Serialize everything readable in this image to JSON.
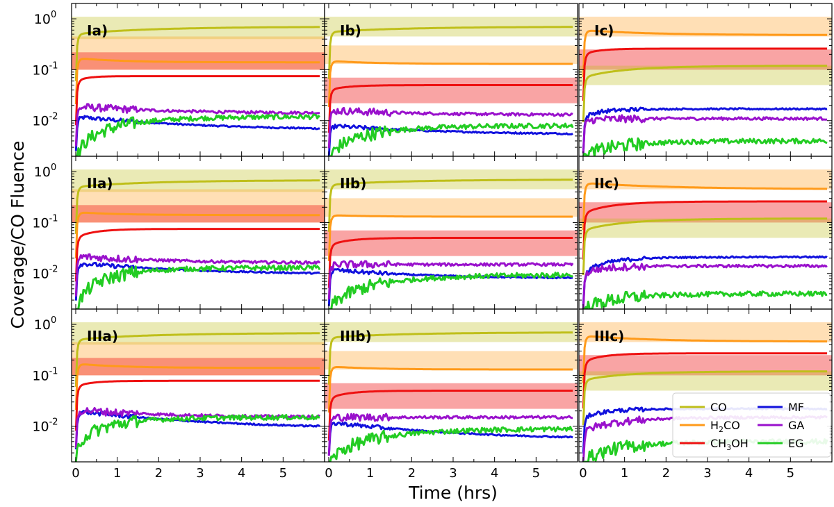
{
  "figure": {
    "ylabel": "Coverage/CO Fluence",
    "xlabel": "Time (hrs)",
    "legend": [
      {
        "name": "CO",
        "label_main": "CO",
        "label_sub": "",
        "label_tail": "",
        "color": "#bfbf1a"
      },
      {
        "name": "H2CO",
        "label_main": "H",
        "label_sub": "2",
        "label_tail": "CO",
        "color": "#ff9a1a"
      },
      {
        "name": "CH3OH",
        "label_main": "CH",
        "label_sub": "3",
        "label_tail": "OH",
        "color": "#ee1111"
      },
      {
        "name": "MF",
        "label_main": "MF",
        "label_sub": "",
        "label_tail": "",
        "color": "#1111dd"
      },
      {
        "name": "GA",
        "label_main": "GA",
        "label_sub": "",
        "label_tail": "",
        "color": "#9911cc"
      },
      {
        "name": "EG",
        "label_main": "EG",
        "label_sub": "",
        "label_tail": "",
        "color": "#22cc22"
      }
    ],
    "legend_position": "bottom-right"
  },
  "chart_data": {
    "type": "line",
    "yscale": "log",
    "xlim": [
      -0.1,
      6.0
    ],
    "ylim": [
      0.002,
      2.0
    ],
    "xticks": [
      "0",
      "1",
      "2",
      "3",
      "4",
      "5"
    ],
    "yticks": [
      {
        "base": "10",
        "exp": "0",
        "value": 1
      },
      {
        "base": "10",
        "exp": "-1",
        "value": 0.1
      },
      {
        "base": "10",
        "exp": "-2",
        "value": 0.01
      }
    ],
    "panels": [
      {
        "label": "Ia)",
        "bands": [
          {
            "species": "CO",
            "range": [
              0.4,
              1.1
            ]
          },
          {
            "species": "H2CO",
            "range": [
              0.1,
              0.45
            ]
          },
          {
            "species": "CH3OH",
            "range": [
              0.1,
              0.22
            ]
          }
        ],
        "series": [
          {
            "species": "CO",
            "start": 0.5,
            "plateau": 0.7,
            "tau": 2.0
          },
          {
            "species": "H2CO",
            "start": 0.17,
            "plateau": 0.14,
            "tau": 1.0
          },
          {
            "species": "CH3OH",
            "start": 0.06,
            "plateau": 0.075,
            "tau": 0.3
          },
          {
            "species": "MF",
            "start": 0.012,
            "plateau": 0.0065,
            "tau": 2.5
          },
          {
            "species": "GA",
            "start": 0.019,
            "plateau": 0.014,
            "tau": 2.0
          },
          {
            "species": "EG",
            "start": 0.002,
            "plateau": 0.012,
            "tau": 1.2
          }
        ]
      },
      {
        "label": "Ib)",
        "bands": [
          {
            "species": "CO",
            "range": [
              0.45,
              1.1
            ]
          },
          {
            "species": "H2CO",
            "range": [
              0.13,
              0.3
            ]
          },
          {
            "species": "CH3OH",
            "range": [
              0.022,
              0.07
            ]
          }
        ],
        "series": [
          {
            "species": "CO",
            "start": 0.55,
            "plateau": 0.7,
            "tau": 2.0
          },
          {
            "species": "H2CO",
            "start": 0.15,
            "plateau": 0.13,
            "tau": 1.0
          },
          {
            "species": "CH3OH",
            "start": 0.04,
            "plateau": 0.05,
            "tau": 0.5
          },
          {
            "species": "MF",
            "start": 0.008,
            "plateau": 0.0053,
            "tau": 2.5
          },
          {
            "species": "GA",
            "start": 0.016,
            "plateau": 0.013,
            "tau": 2.0
          },
          {
            "species": "EG",
            "start": 0.002,
            "plateau": 0.008,
            "tau": 1.2
          }
        ]
      },
      {
        "label": "Ic)",
        "bands": [
          {
            "species": "H2CO",
            "range": [
              0.45,
              1.1
            ]
          },
          {
            "species": "CH3OH",
            "range": [
              0.1,
              0.25
            ]
          },
          {
            "species": "CO",
            "range": [
              0.05,
              0.12
            ]
          }
        ],
        "series": [
          {
            "species": "H2CO",
            "start": 0.6,
            "plateau": 0.48,
            "tau": 1.5
          },
          {
            "species": "CH3OH",
            "start": 0.2,
            "plateau": 0.26,
            "tau": 0.4
          },
          {
            "species": "CO",
            "start": 0.07,
            "plateau": 0.12,
            "tau": 1.2
          },
          {
            "species": "MF",
            "start": 0.012,
            "plateau": 0.017,
            "tau": 0.5
          },
          {
            "species": "GA",
            "start": 0.01,
            "plateau": 0.011,
            "tau": 0.5
          },
          {
            "species": "EG",
            "start": 0.002,
            "plateau": 0.004,
            "tau": 1.0
          }
        ]
      },
      {
        "label": "IIa)",
        "bands": [
          {
            "species": "CO",
            "range": [
              0.4,
              1.1
            ]
          },
          {
            "species": "H2CO",
            "range": [
              0.1,
              0.45
            ]
          },
          {
            "species": "CH3OH",
            "range": [
              0.1,
              0.22
            ]
          }
        ],
        "series": [
          {
            "species": "CO",
            "start": 0.5,
            "plateau": 0.68,
            "tau": 2.0
          },
          {
            "species": "H2CO",
            "start": 0.16,
            "plateau": 0.14,
            "tau": 1.0
          },
          {
            "species": "CH3OH",
            "start": 0.05,
            "plateau": 0.075,
            "tau": 0.5
          },
          {
            "species": "MF",
            "start": 0.016,
            "plateau": 0.0095,
            "tau": 2.5
          },
          {
            "species": "GA",
            "start": 0.022,
            "plateau": 0.016,
            "tau": 2.0
          },
          {
            "species": "EG",
            "start": 0.002,
            "plateau": 0.013,
            "tau": 1.0
          }
        ]
      },
      {
        "label": "IIb)",
        "bands": [
          {
            "species": "CO",
            "range": [
              0.45,
              1.1
            ]
          },
          {
            "species": "H2CO",
            "range": [
              0.13,
              0.3
            ]
          },
          {
            "species": "CH3OH",
            "range": [
              0.022,
              0.07
            ]
          }
        ],
        "series": [
          {
            "species": "CO",
            "start": 0.55,
            "plateau": 0.7,
            "tau": 2.0
          },
          {
            "species": "H2CO",
            "start": 0.14,
            "plateau": 0.13,
            "tau": 1.0
          },
          {
            "species": "CH3OH",
            "start": 0.035,
            "plateau": 0.05,
            "tau": 0.5
          },
          {
            "species": "MF",
            "start": 0.012,
            "plateau": 0.008,
            "tau": 2.0
          },
          {
            "species": "GA",
            "start": 0.015,
            "plateau": 0.015,
            "tau": 1.0
          },
          {
            "species": "EG",
            "start": 0.002,
            "plateau": 0.0095,
            "tau": 1.5
          }
        ]
      },
      {
        "label": "IIc)",
        "bands": [
          {
            "species": "H2CO",
            "range": [
              0.45,
              1.1
            ]
          },
          {
            "species": "CH3OH",
            "range": [
              0.1,
              0.25
            ]
          },
          {
            "species": "CO",
            "range": [
              0.05,
              0.12
            ]
          }
        ],
        "series": [
          {
            "species": "H2CO",
            "start": 0.6,
            "plateau": 0.45,
            "tau": 2.0
          },
          {
            "species": "CH3OH",
            "start": 0.15,
            "plateau": 0.26,
            "tau": 0.8
          },
          {
            "species": "CO",
            "start": 0.07,
            "plateau": 0.12,
            "tau": 1.2
          },
          {
            "species": "MF",
            "start": 0.01,
            "plateau": 0.021,
            "tau": 0.7
          },
          {
            "species": "GA",
            "start": 0.01,
            "plateau": 0.014,
            "tau": 0.5
          },
          {
            "species": "EG",
            "start": 0.002,
            "plateau": 0.004,
            "tau": 1.0
          }
        ]
      },
      {
        "label": "IIIa)",
        "bands": [
          {
            "species": "CO",
            "range": [
              0.4,
              1.1
            ]
          },
          {
            "species": "H2CO",
            "range": [
              0.1,
              0.45
            ]
          },
          {
            "species": "CH3OH",
            "range": [
              0.1,
              0.22
            ]
          }
        ],
        "series": [
          {
            "species": "CO",
            "start": 0.5,
            "plateau": 0.68,
            "tau": 2.0
          },
          {
            "species": "H2CO",
            "start": 0.17,
            "plateau": 0.14,
            "tau": 1.0
          },
          {
            "species": "CH3OH",
            "start": 0.06,
            "plateau": 0.078,
            "tau": 0.4
          },
          {
            "species": "MF",
            "start": 0.02,
            "plateau": 0.009,
            "tau": 2.5
          },
          {
            "species": "GA",
            "start": 0.021,
            "plateau": 0.015,
            "tau": 2.0
          },
          {
            "species": "EG",
            "start": 0.004,
            "plateau": 0.015,
            "tau": 1.0
          }
        ]
      },
      {
        "label": "IIIb)",
        "bands": [
          {
            "species": "CO",
            "range": [
              0.45,
              1.1
            ]
          },
          {
            "species": "H2CO",
            "range": [
              0.13,
              0.3
            ]
          },
          {
            "species": "CH3OH",
            "range": [
              0.022,
              0.07
            ]
          }
        ],
        "series": [
          {
            "species": "CO",
            "start": 0.55,
            "plateau": 0.7,
            "tau": 2.0
          },
          {
            "species": "H2CO",
            "start": 0.15,
            "plateau": 0.13,
            "tau": 1.0
          },
          {
            "species": "CH3OH",
            "start": 0.035,
            "plateau": 0.05,
            "tau": 0.5
          },
          {
            "species": "MF",
            "start": 0.012,
            "plateau": 0.0055,
            "tau": 2.5
          },
          {
            "species": "GA",
            "start": 0.015,
            "plateau": 0.015,
            "tau": 1.0
          },
          {
            "species": "EG",
            "start": 0.002,
            "plateau": 0.009,
            "tau": 1.5
          }
        ]
      },
      {
        "label": "IIIc)",
        "bands": [
          {
            "species": "H2CO",
            "range": [
              0.45,
              1.1
            ]
          },
          {
            "species": "CH3OH",
            "range": [
              0.1,
              0.25
            ]
          },
          {
            "species": "CO",
            "range": [
              0.05,
              0.12
            ]
          }
        ],
        "series": [
          {
            "species": "H2CO",
            "start": 0.6,
            "plateau": 0.46,
            "tau": 1.5
          },
          {
            "species": "CH3OH",
            "start": 0.18,
            "plateau": 0.27,
            "tau": 0.5
          },
          {
            "species": "CO",
            "start": 0.08,
            "plateau": 0.12,
            "tau": 1.2
          },
          {
            "species": "MF",
            "start": 0.015,
            "plateau": 0.022,
            "tau": 0.6
          },
          {
            "species": "GA",
            "start": 0.008,
            "plateau": 0.015,
            "tau": 1.0
          },
          {
            "species": "EG",
            "start": 0.002,
            "plateau": 0.005,
            "tau": 1.0
          }
        ]
      }
    ]
  }
}
